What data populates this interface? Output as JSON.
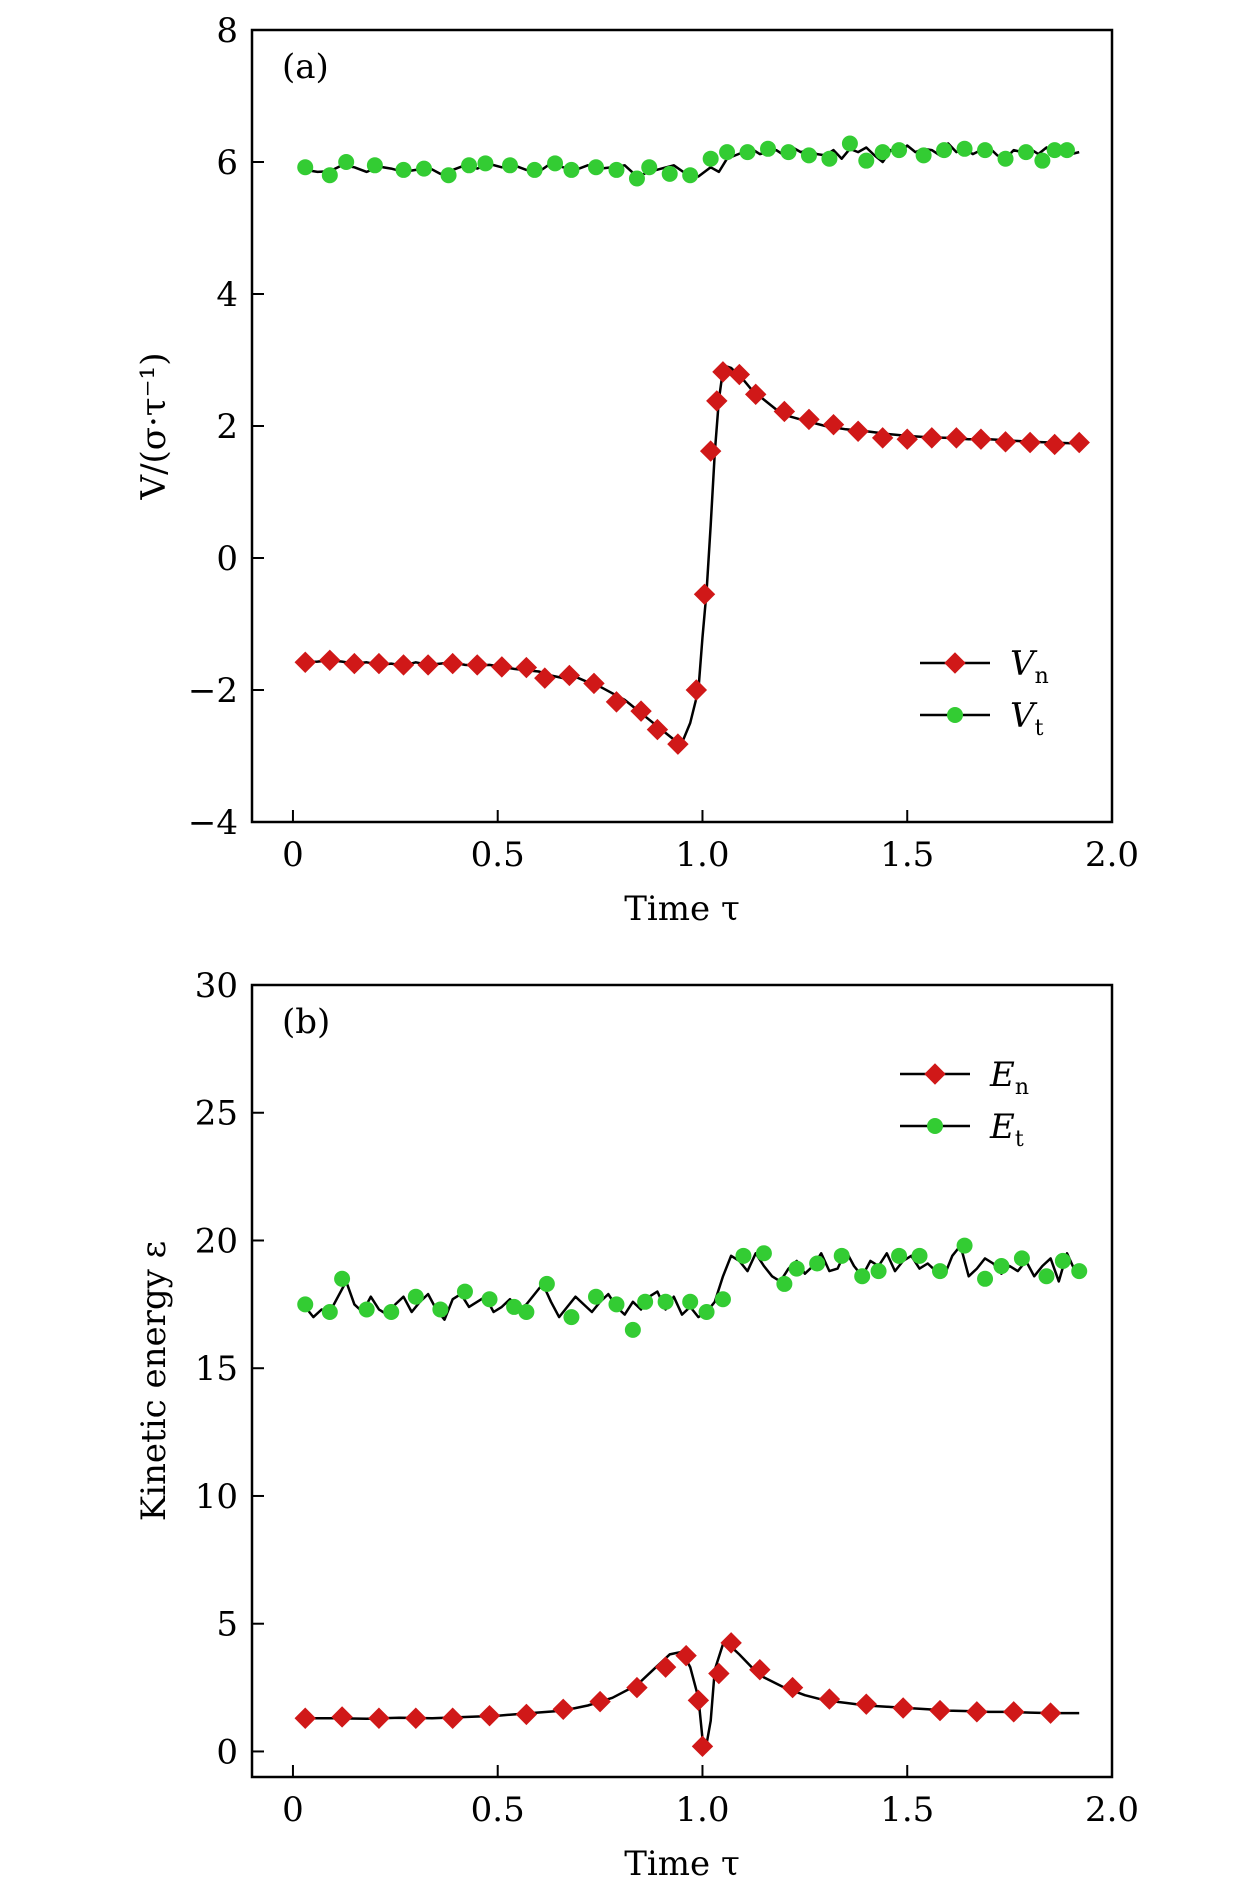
{
  "colors": {
    "red": "#d01818",
    "green": "#33cc33",
    "line": "#000000"
  },
  "chart_data": [
    {
      "type": "line",
      "panel_label": "(a)",
      "xlabel": "Time τ",
      "ylabel": "V/(σ·τ⁻¹)",
      "xlim": [
        -0.1,
        2.0
      ],
      "ylim": [
        -4,
        8
      ],
      "xticks": [
        0,
        0.5,
        1.0,
        1.5,
        2.0
      ],
      "xtick_labels": [
        "0",
        "0.5",
        "1.0",
        "1.5",
        "2.0"
      ],
      "yticks": [
        -4,
        -2,
        0,
        2,
        4,
        6,
        8
      ],
      "ytick_labels": [
        "−4",
        "−2",
        "0",
        "2",
        "4",
        "6",
        "8"
      ],
      "legend_position": "lower-right",
      "series": [
        {
          "name": "V",
          "subscript": "n",
          "color": "red",
          "marker": "diamond",
          "line_x": [
            0.03,
            0.06,
            0.09,
            0.12,
            0.15,
            0.18,
            0.21,
            0.24,
            0.27,
            0.3,
            0.33,
            0.36,
            0.39,
            0.42,
            0.45,
            0.48,
            0.51,
            0.54,
            0.57,
            0.6,
            0.63,
            0.66,
            0.69,
            0.72,
            0.75,
            0.78,
            0.81,
            0.84,
            0.87,
            0.9,
            0.93,
            0.95,
            0.97,
            0.99,
            1.0,
            1.01,
            1.02,
            1.03,
            1.04,
            1.05,
            1.06,
            1.07,
            1.08,
            1.1,
            1.12,
            1.15,
            1.18,
            1.21,
            1.25,
            1.3,
            1.35,
            1.4,
            1.45,
            1.5,
            1.55,
            1.6,
            1.65,
            1.7,
            1.75,
            1.8,
            1.85,
            1.9,
            1.92
          ],
          "line_y": [
            -1.58,
            -1.57,
            -1.55,
            -1.57,
            -1.6,
            -1.58,
            -1.62,
            -1.6,
            -1.63,
            -1.58,
            -1.62,
            -1.6,
            -1.58,
            -1.62,
            -1.63,
            -1.62,
            -1.65,
            -1.68,
            -1.7,
            -1.72,
            -1.78,
            -1.82,
            -1.8,
            -1.88,
            -1.95,
            -2.05,
            -2.15,
            -2.3,
            -2.45,
            -2.6,
            -2.75,
            -2.8,
            -2.5,
            -2.0,
            -1.2,
            -0.5,
            0.5,
            1.6,
            2.4,
            2.85,
            2.9,
            2.88,
            2.82,
            2.7,
            2.55,
            2.4,
            2.25,
            2.15,
            2.08,
            2.0,
            1.95,
            1.92,
            1.88,
            1.85,
            1.83,
            1.82,
            1.8,
            1.8,
            1.78,
            1.76,
            1.75,
            1.74,
            1.75
          ],
          "marker_x": [
            0.03,
            0.09,
            0.15,
            0.21,
            0.27,
            0.33,
            0.39,
            0.45,
            0.51,
            0.57,
            0.615,
            0.675,
            0.735,
            0.79,
            0.85,
            0.89,
            0.94,
            0.985,
            1.005,
            1.02,
            1.035,
            1.05,
            1.09,
            1.13,
            1.2,
            1.26,
            1.32,
            1.38,
            1.44,
            1.5,
            1.56,
            1.62,
            1.68,
            1.74,
            1.8,
            1.86,
            1.92
          ],
          "marker_y": [
            -1.58,
            -1.55,
            -1.6,
            -1.6,
            -1.62,
            -1.62,
            -1.6,
            -1.62,
            -1.65,
            -1.66,
            -1.82,
            -1.78,
            -1.9,
            -2.18,
            -2.32,
            -2.6,
            -2.82,
            -2.0,
            -0.55,
            1.62,
            2.38,
            2.82,
            2.78,
            2.48,
            2.22,
            2.1,
            2.02,
            1.92,
            1.82,
            1.8,
            1.82,
            1.82,
            1.8,
            1.76,
            1.75,
            1.72,
            1.75
          ]
        },
        {
          "name": "V",
          "subscript": "t",
          "color": "green",
          "marker": "circle",
          "line_x": [
            0.03,
            0.06,
            0.09,
            0.12,
            0.15,
            0.18,
            0.21,
            0.24,
            0.27,
            0.3,
            0.33,
            0.36,
            0.39,
            0.42,
            0.45,
            0.48,
            0.51,
            0.54,
            0.57,
            0.6,
            0.63,
            0.66,
            0.69,
            0.72,
            0.75,
            0.78,
            0.81,
            0.84,
            0.87,
            0.9,
            0.93,
            0.96,
            0.99,
            1.02,
            1.04,
            1.06,
            1.08,
            1.1,
            1.12,
            1.14,
            1.16,
            1.18,
            1.2,
            1.22,
            1.24,
            1.26,
            1.28,
            1.3,
            1.32,
            1.34,
            1.36,
            1.38,
            1.4,
            1.42,
            1.44,
            1.46,
            1.48,
            1.5,
            1.52,
            1.54,
            1.56,
            1.58,
            1.6,
            1.62,
            1.64,
            1.66,
            1.68,
            1.7,
            1.72,
            1.74,
            1.76,
            1.78,
            1.8,
            1.82,
            1.84,
            1.86,
            1.88,
            1.9,
            1.92
          ],
          "line_y": [
            5.88,
            5.85,
            5.86,
            5.95,
            5.92,
            5.85,
            5.93,
            5.9,
            5.85,
            5.88,
            5.92,
            5.82,
            5.88,
            5.95,
            5.9,
            5.97,
            5.92,
            5.95,
            5.88,
            5.85,
            5.98,
            5.92,
            5.88,
            5.95,
            5.9,
            5.92,
            5.95,
            5.78,
            5.85,
            5.9,
            5.95,
            5.82,
            5.78,
            5.92,
            5.85,
            6.05,
            6.1,
            6.15,
            6.2,
            6.12,
            6.15,
            6.18,
            6.1,
            6.22,
            6.15,
            6.18,
            6.12,
            6.1,
            6.18,
            6.05,
            6.2,
            6.15,
            6.22,
            6.1,
            6.0,
            6.18,
            6.12,
            6.25,
            6.15,
            6.2,
            6.18,
            6.1,
            6.28,
            6.15,
            6.2,
            6.12,
            6.18,
            6.22,
            6.1,
            6.05,
            6.18,
            6.15,
            6.2,
            6.12,
            6.22,
            6.08,
            6.18,
            6.12,
            6.15
          ],
          "marker_x": [
            0.03,
            0.09,
            0.13,
            0.2,
            0.27,
            0.32,
            0.38,
            0.43,
            0.47,
            0.53,
            0.59,
            0.64,
            0.68,
            0.74,
            0.79,
            0.84,
            0.87,
            0.92,
            0.97,
            1.02,
            1.06,
            1.11,
            1.16,
            1.21,
            1.26,
            1.31,
            1.36,
            1.4,
            1.44,
            1.48,
            1.54,
            1.59,
            1.64,
            1.69,
            1.74,
            1.79,
            1.83,
            1.86,
            1.89
          ],
          "marker_y": [
            5.92,
            5.8,
            6.0,
            5.95,
            5.88,
            5.9,
            5.8,
            5.95,
            5.98,
            5.95,
            5.88,
            5.98,
            5.88,
            5.92,
            5.88,
            5.75,
            5.92,
            5.82,
            5.8,
            6.05,
            6.15,
            6.15,
            6.2,
            6.15,
            6.1,
            6.05,
            6.28,
            6.02,
            6.15,
            6.18,
            6.1,
            6.18,
            6.2,
            6.18,
            6.05,
            6.15,
            6.02,
            6.18,
            6.18
          ]
        }
      ]
    },
    {
      "type": "line",
      "panel_label": "(b)",
      "xlabel": "Time τ",
      "ylabel": "Kinetic energy ε",
      "xlim": [
        -0.1,
        2.0
      ],
      "ylim": [
        -1,
        30
      ],
      "xticks": [
        0,
        0.5,
        1.0,
        1.5,
        2.0
      ],
      "xtick_labels": [
        "0",
        "0.5",
        "1.0",
        "1.5",
        "2.0"
      ],
      "yticks": [
        0,
        5,
        10,
        15,
        20,
        25,
        30
      ],
      "ytick_labels": [
        "0",
        "5",
        "10",
        "15",
        "20",
        "25",
        "30"
      ],
      "legend_position": "upper-right",
      "series": [
        {
          "name": "E",
          "subscript": "n",
          "color": "red",
          "marker": "diamond",
          "line_x": [
            0.03,
            0.1,
            0.18,
            0.26,
            0.34,
            0.42,
            0.5,
            0.58,
            0.66,
            0.72,
            0.78,
            0.84,
            0.88,
            0.92,
            0.95,
            0.97,
            0.99,
            1.0,
            1.01,
            1.02,
            1.03,
            1.05,
            1.07,
            1.09,
            1.12,
            1.15,
            1.2,
            1.25,
            1.3,
            1.35,
            1.4,
            1.45,
            1.5,
            1.55,
            1.6,
            1.65,
            1.7,
            1.75,
            1.8,
            1.85,
            1.9,
            1.92
          ],
          "line_y": [
            1.3,
            1.3,
            1.28,
            1.32,
            1.3,
            1.35,
            1.4,
            1.5,
            1.6,
            1.8,
            2.1,
            2.6,
            3.2,
            3.8,
            3.9,
            3.3,
            2.1,
            0.5,
            0.3,
            1.2,
            3.2,
            4.2,
            4.1,
            3.8,
            3.3,
            2.9,
            2.5,
            2.2,
            2.0,
            1.9,
            1.8,
            1.75,
            1.7,
            1.65,
            1.6,
            1.58,
            1.55,
            1.55,
            1.52,
            1.5,
            1.5,
            1.5
          ],
          "marker_x": [
            0.03,
            0.12,
            0.21,
            0.3,
            0.39,
            0.48,
            0.57,
            0.66,
            0.75,
            0.84,
            0.91,
            0.96,
            0.99,
            1.0,
            1.04,
            1.07,
            1.14,
            1.22,
            1.31,
            1.4,
            1.49,
            1.58,
            1.67,
            1.76,
            1.85
          ],
          "marker_y": [
            1.3,
            1.35,
            1.3,
            1.3,
            1.3,
            1.4,
            1.45,
            1.65,
            1.95,
            2.5,
            3.3,
            3.75,
            2.0,
            0.2,
            3.05,
            4.25,
            3.2,
            2.5,
            2.05,
            1.85,
            1.7,
            1.6,
            1.55,
            1.55,
            1.5
          ]
        },
        {
          "name": "E",
          "subscript": "t",
          "color": "green",
          "marker": "circle",
          "line_x": [
            0.03,
            0.05,
            0.07,
            0.09,
            0.11,
            0.13,
            0.15,
            0.17,
            0.19,
            0.21,
            0.23,
            0.25,
            0.27,
            0.29,
            0.31,
            0.33,
            0.35,
            0.37,
            0.39,
            0.41,
            0.43,
            0.45,
            0.47,
            0.49,
            0.51,
            0.53,
            0.55,
            0.57,
            0.59,
            0.61,
            0.63,
            0.65,
            0.67,
            0.69,
            0.71,
            0.73,
            0.75,
            0.77,
            0.79,
            0.81,
            0.83,
            0.85,
            0.87,
            0.89,
            0.91,
            0.93,
            0.95,
            0.97,
            0.99,
            1.01,
            1.03,
            1.05,
            1.07,
            1.09,
            1.11,
            1.13,
            1.15,
            1.17,
            1.19,
            1.21,
            1.23,
            1.25,
            1.27,
            1.29,
            1.31,
            1.33,
            1.35,
            1.37,
            1.39,
            1.41,
            1.43,
            1.45,
            1.47,
            1.49,
            1.51,
            1.53,
            1.55,
            1.57,
            1.59,
            1.61,
            1.63,
            1.65,
            1.67,
            1.69,
            1.71,
            1.73,
            1.75,
            1.77,
            1.79,
            1.81,
            1.83,
            1.85,
            1.87,
            1.89,
            1.91
          ],
          "line_y": [
            17.4,
            17.0,
            17.3,
            17.2,
            17.8,
            18.4,
            17.5,
            17.2,
            17.8,
            17.3,
            17.1,
            17.5,
            17.8,
            17.2,
            17.6,
            17.9,
            17.3,
            16.9,
            17.7,
            17.9,
            17.4,
            17.6,
            17.8,
            17.2,
            17.4,
            17.7,
            17.3,
            17.5,
            17.9,
            18.3,
            17.6,
            17.0,
            17.4,
            17.8,
            17.5,
            17.2,
            17.6,
            17.9,
            17.4,
            17.1,
            17.6,
            17.3,
            17.8,
            18.0,
            17.3,
            17.8,
            17.1,
            17.4,
            17.0,
            17.2,
            17.6,
            18.6,
            19.4,
            19.2,
            18.8,
            19.5,
            19.0,
            18.6,
            18.4,
            18.9,
            19.2,
            18.7,
            19.0,
            19.5,
            18.8,
            18.9,
            19.6,
            19.0,
            18.6,
            19.2,
            19.0,
            19.5,
            18.8,
            19.2,
            19.4,
            18.9,
            19.1,
            18.8,
            18.6,
            19.4,
            19.8,
            18.6,
            18.9,
            19.3,
            19.1,
            18.7,
            19.0,
            18.8,
            19.2,
            18.6,
            19.0,
            19.3,
            18.4,
            19.5,
            18.8
          ],
          "marker_x": [
            0.03,
            0.09,
            0.12,
            0.18,
            0.24,
            0.3,
            0.36,
            0.42,
            0.48,
            0.54,
            0.57,
            0.62,
            0.68,
            0.74,
            0.79,
            0.83,
            0.86,
            0.91,
            0.97,
            1.01,
            1.05,
            1.1,
            1.15,
            1.2,
            1.23,
            1.28,
            1.34,
            1.39,
            1.43,
            1.48,
            1.53,
            1.58,
            1.64,
            1.69,
            1.73,
            1.78,
            1.84,
            1.88,
            1.92
          ],
          "marker_y": [
            17.5,
            17.2,
            18.5,
            17.3,
            17.2,
            17.8,
            17.3,
            18.0,
            17.7,
            17.4,
            17.2,
            18.3,
            17.0,
            17.8,
            17.5,
            16.5,
            17.6,
            17.6,
            17.6,
            17.2,
            17.7,
            19.4,
            19.5,
            18.3,
            18.9,
            19.1,
            19.4,
            18.6,
            18.8,
            19.4,
            19.4,
            18.8,
            19.8,
            18.5,
            19.0,
            19.3,
            18.6,
            19.2,
            18.8
          ]
        }
      ]
    }
  ]
}
